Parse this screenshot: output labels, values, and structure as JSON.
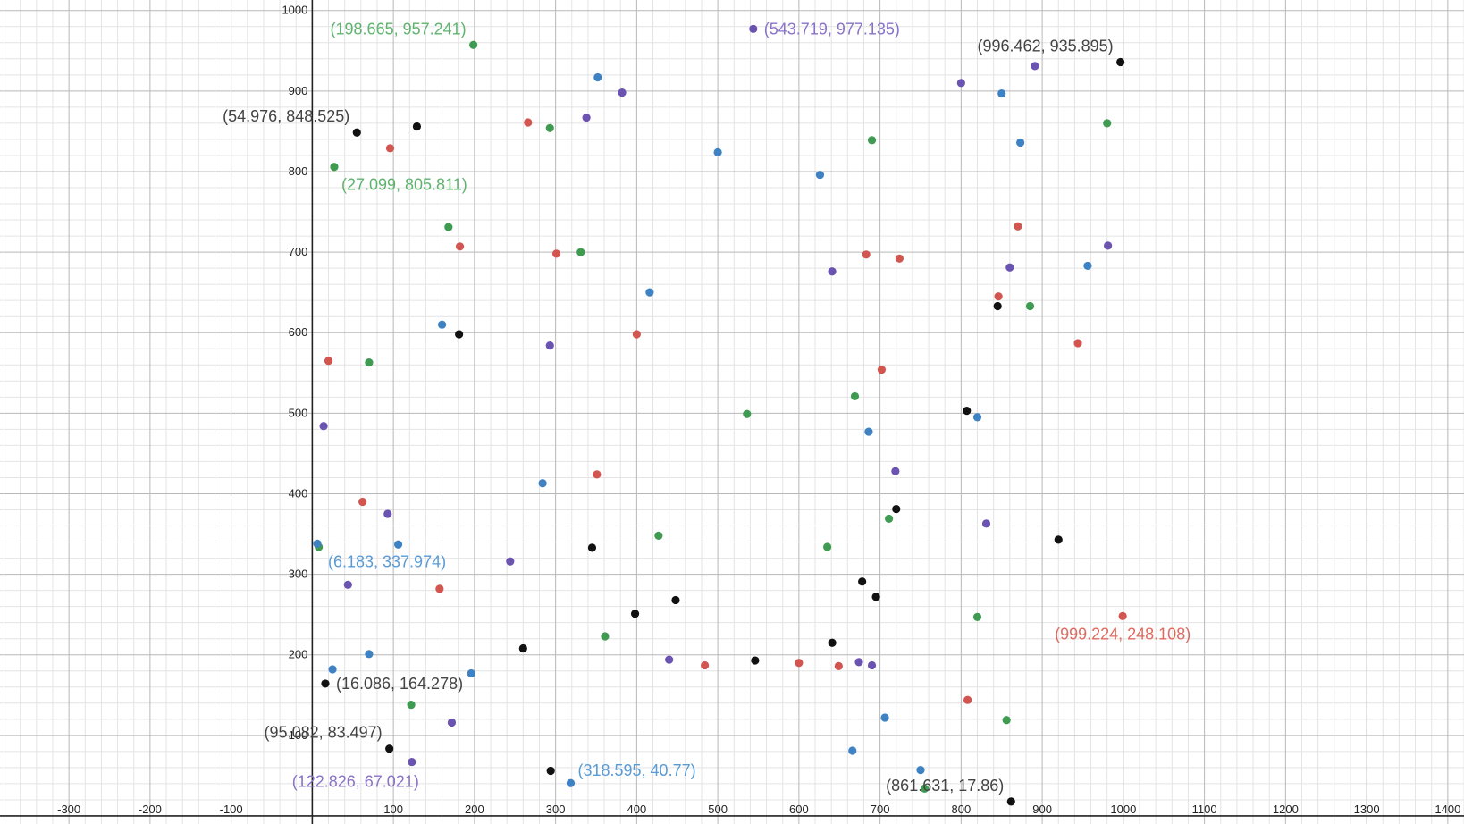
{
  "chart_data": {
    "type": "scatter",
    "title": "",
    "xlabel": "",
    "ylabel": "",
    "xlim": [
      -385,
      1420
    ],
    "ylim": [
      -10,
      1013
    ],
    "grid": true,
    "x_ticks": [
      -300,
      -200,
      -100,
      100,
      200,
      300,
      400,
      500,
      600,
      700,
      800,
      900,
      1000,
      1100,
      1200,
      1300,
      1400
    ],
    "y_ticks": [
      100,
      200,
      300,
      400,
      500,
      600,
      700,
      800,
      900,
      1000
    ],
    "series_colors": {
      "blue": "#3e82c4",
      "red": "#d2554f",
      "green": "#3f9a52",
      "purple": "#6b53b1",
      "black": "#111111"
    },
    "label_colors": {
      "blue": "#5a9bd5",
      "red": "#e06a60",
      "green": "#5fb36f",
      "purple": "#8a72c9",
      "black": "#444444"
    },
    "series": [
      {
        "color": "green",
        "points": [
          [
            198.665,
            957.241
          ],
          [
            27.099,
            805.811
          ],
          [
            293,
            854
          ],
          [
            690,
            839
          ],
          [
            980,
            860
          ],
          [
            168,
            731
          ],
          [
            331,
            700
          ],
          [
            885,
            633
          ],
          [
            70,
            563
          ],
          [
            536,
            499
          ],
          [
            669,
            521
          ],
          [
            8,
            334
          ],
          [
            427,
            348
          ],
          [
            635,
            334
          ],
          [
            711,
            369
          ],
          [
            361,
            223
          ],
          [
            820,
            247
          ],
          [
            122,
            138
          ],
          [
            856,
            119
          ],
          [
            755,
            34
          ]
        ]
      },
      {
        "color": "blue",
        "points": [
          [
            6.183,
            337.974
          ],
          [
            318.595,
            40.77
          ],
          [
            352,
            917
          ],
          [
            850,
            897
          ],
          [
            500,
            824
          ],
          [
            873,
            836
          ],
          [
            626,
            796
          ],
          [
            416,
            650
          ],
          [
            160,
            610
          ],
          [
            956,
            683
          ],
          [
            686,
            477
          ],
          [
            820,
            495
          ],
          [
            284,
            413
          ],
          [
            106,
            337
          ],
          [
            70,
            201
          ],
          [
            25,
            182
          ],
          [
            196,
            177
          ],
          [
            706,
            122
          ],
          [
            666,
            81
          ],
          [
            750,
            57
          ]
        ]
      },
      {
        "color": "purple",
        "points": [
          [
            543.719,
            977.135
          ],
          [
            122.826,
            67.021
          ],
          [
            382,
            898
          ],
          [
            891,
            931
          ],
          [
            800,
            910
          ],
          [
            338,
            867
          ],
          [
            981,
            708
          ],
          [
            860,
            681
          ],
          [
            641,
            676
          ],
          [
            293,
            584
          ],
          [
            14,
            484
          ],
          [
            719,
            428
          ],
          [
            93,
            375
          ],
          [
            831,
            363
          ],
          [
            244,
            316
          ],
          [
            44,
            287
          ],
          [
            440,
            194
          ],
          [
            674,
            191
          ],
          [
            690,
            187
          ],
          [
            172,
            116
          ]
        ]
      },
      {
        "color": "red",
        "points": [
          [
            999.224,
            248.108
          ],
          [
            266,
            861
          ],
          [
            96,
            829
          ],
          [
            870,
            732
          ],
          [
            301,
            698
          ],
          [
            182,
            707
          ],
          [
            683,
            697
          ],
          [
            724,
            692
          ],
          [
            846,
            645
          ],
          [
            400,
            598
          ],
          [
            944,
            587
          ],
          [
            20,
            565
          ],
          [
            702,
            554
          ],
          [
            351,
            424
          ],
          [
            62,
            390
          ],
          [
            157,
            282
          ],
          [
            484,
            187
          ],
          [
            600,
            190
          ],
          [
            649,
            186
          ],
          [
            808,
            144
          ]
        ]
      },
      {
        "color": "black",
        "points": [
          [
            996.462,
            935.895
          ],
          [
            54.976,
            848.525
          ],
          [
            16.086,
            164.278
          ],
          [
            95.082,
            83.497
          ],
          [
            861.631,
            17.86
          ],
          [
            129,
            856
          ],
          [
            845,
            633
          ],
          [
            181,
            598
          ],
          [
            807,
            503
          ],
          [
            720,
            381
          ],
          [
            345,
            333
          ],
          [
            920,
            343
          ],
          [
            678,
            291
          ],
          [
            695,
            272
          ],
          [
            398,
            251
          ],
          [
            448,
            268
          ],
          [
            260,
            208
          ],
          [
            641,
            215
          ],
          [
            546,
            193
          ],
          [
            294,
            56
          ]
        ]
      }
    ],
    "annotations": [
      {
        "text": "(198.665, 957.241)",
        "color": "green",
        "x": 198.665,
        "y": 957.241,
        "pos": "above-left"
      },
      {
        "text": "(543.719, 977.135)",
        "color": "purple",
        "x": 543.719,
        "y": 977.135,
        "pos": "right"
      },
      {
        "text": "(996.462, 935.895)",
        "color": "black",
        "x": 996.462,
        "y": 935.895,
        "pos": "above-left"
      },
      {
        "text": "(54.976, 848.525)",
        "color": "black",
        "x": 54.976,
        "y": 848.525,
        "pos": "above-left"
      },
      {
        "text": "(27.099, 805.811)",
        "color": "green",
        "x": 27.099,
        "y": 805.811,
        "pos": "below"
      },
      {
        "text": "(6.183, 337.974)",
        "color": "blue",
        "x": 6.183,
        "y": 337.974,
        "pos": "below"
      },
      {
        "text": "(999.224, 248.108)",
        "color": "red",
        "x": 999.224,
        "y": 248.108,
        "pos": "below"
      },
      {
        "text": "(16.086, 164.278)",
        "color": "black",
        "x": 16.086,
        "y": 164.278,
        "pos": "right"
      },
      {
        "text": "(95.082, 83.497)",
        "color": "black",
        "x": 95.082,
        "y": 83.497,
        "pos": "above-left"
      },
      {
        "text": "(318.595, 40.77)",
        "color": "blue",
        "x": 318.595,
        "y": 40.77,
        "pos": "above-right"
      },
      {
        "text": "(122.826, 67.021)",
        "color": "purple",
        "x": 122.826,
        "y": 67.021,
        "pos": "below-left"
      },
      {
        "text": "(861.631, 17.86)",
        "color": "black",
        "x": 861.631,
        "y": 17.86,
        "pos": "above-left"
      }
    ]
  }
}
